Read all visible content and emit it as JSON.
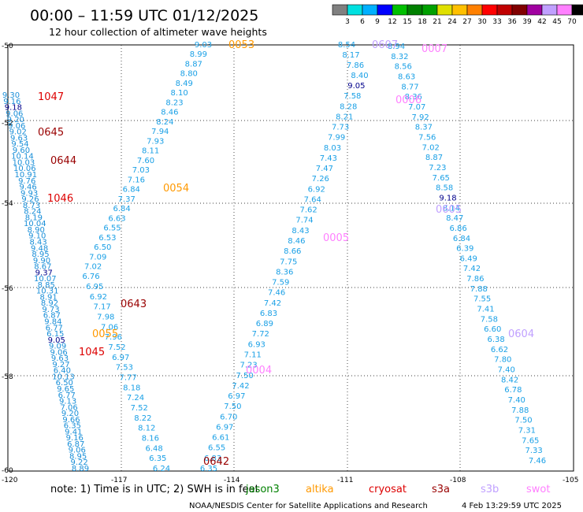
{
  "header": {
    "title": "00:00 – 11:59 UTC 01/12/2025",
    "subtitle": "12 hour collection of altimeter wave heights"
  },
  "legend": {
    "ticks": [
      "3",
      "6",
      "9",
      "12",
      "15",
      "18",
      "21",
      "24",
      "27",
      "30",
      "33",
      "36",
      "39",
      "42",
      "45",
      "70"
    ],
    "unit": "(ft)",
    "colors": [
      "#808080",
      "#00e0e0",
      "#00b0ff",
      "#0000ff",
      "#00c000",
      "#008000",
      "#00a000",
      "#e0e000",
      "#ffc000",
      "#ff8000",
      "#ff0000",
      "#c00000",
      "#800000",
      "#a000a0",
      "#c0a0ff",
      "#ff80ff",
      "#000000"
    ]
  },
  "axes": {
    "x_labels": [
      "-120",
      "-117",
      "-114",
      "-111",
      "-108",
      "-105"
    ],
    "y_labels": [
      "-50",
      "-52",
      "-54",
      "-56",
      "-58",
      "-60"
    ],
    "grid": "dotted"
  },
  "footer": {
    "note": "note:  1) Time is in UTC; 2) SWH is in feet",
    "satellites": [
      {
        "name": "jason3",
        "color": "#008000"
      },
      {
        "name": "altika",
        "color": "#ff9900"
      },
      {
        "name": "cryosat",
        "color": "#dd0000"
      },
      {
        "name": "s3a",
        "color": "#990000"
      },
      {
        "name": "s3b",
        "color": "#c0a0ff"
      },
      {
        "name": "swot",
        "color": "#ff80ff"
      }
    ],
    "credit": "NOAA/NESDIS Center for Satellite Applications and Research",
    "timestamp": "4 Feb 13:29:59 UTC 2025"
  },
  "time_labels": [
    {
      "text": "1047",
      "color": "#dd0000"
    },
    {
      "text": "0645",
      "color": "#990000"
    },
    {
      "text": "0644",
      "color": "#990000"
    },
    {
      "text": "1046",
      "color": "#dd0000"
    },
    {
      "text": "0643",
      "color": "#990000"
    },
    {
      "text": "1045",
      "color": "#dd0000"
    },
    {
      "text": "0642",
      "color": "#990000"
    },
    {
      "text": "0053",
      "color": "#ff9900"
    },
    {
      "text": "0054",
      "color": "#ff9900"
    },
    {
      "text": "0055",
      "color": "#ff9900"
    },
    {
      "text": "0607",
      "color": "#c0a0ff"
    },
    {
      "text": "0007",
      "color": "#ff80ff"
    },
    {
      "text": "0006",
      "color": "#ff80ff"
    },
    {
      "text": "0605",
      "color": "#c0a0ff"
    },
    {
      "text": "0005",
      "color": "#ff80ff"
    },
    {
      "text": "0604",
      "color": "#c0a0ff"
    },
    {
      "text": "0004",
      "color": "#ff80ff"
    }
  ],
  "track_values": {
    "track_a": [
      "9.03",
      "8.99",
      "8.87",
      "8.80",
      "8.49",
      "8.10",
      "8.23",
      "8.46",
      "8.24",
      "7.94",
      "7.93",
      "8.11",
      "7.60",
      "7.03",
      "7.16",
      "6.84",
      "7.37",
      "6.84",
      "6.63",
      "6.55",
      "6.53",
      "6.50",
      "7.09",
      "7.02",
      "6.76",
      "6.95",
      "6.92",
      "7.17",
      "7.98",
      "7.06",
      "7.96",
      "7.52",
      "6.97",
      "7.53",
      "7.77",
      "8.18",
      "7.24",
      "7.52",
      "8.22",
      "8.12",
      "8.16",
      "6.48",
      "6.35",
      "6.24"
    ],
    "track_b": [
      "8.54",
      "8.17",
      "7.86",
      "8.40",
      "9.05",
      "7.58",
      "8.28",
      "8.21",
      "7.73",
      "7.99",
      "8.03",
      "7.43",
      "7.47",
      "7.26",
      "6.92",
      "7.64",
      "7.62",
      "7.74",
      "8.43",
      "8.46",
      "8.66",
      "7.75",
      "8.36",
      "7.59",
      "7.46",
      "7.42",
      "6.83",
      "6.89",
      "7.72",
      "6.93",
      "7.11",
      "7.23",
      "7.50",
      "7.42",
      "6.97",
      "7.50",
      "6.70",
      "6.97",
      "6.61",
      "6.55",
      "6.83",
      "6.35"
    ],
    "track_c": [
      "8.94",
      "8.32",
      "8.56",
      "8.63",
      "8.77",
      "8.36",
      "7.07",
      "7.92",
      "8.37",
      "7.56",
      "7.02",
      "8.87",
      "7.23",
      "7.65",
      "8.58",
      "9.18",
      "8.14",
      "8.47",
      "6.86",
      "6.84",
      "6.39",
      "6.49",
      "7.42",
      "7.86",
      "7.88",
      "7.55",
      "7.41",
      "7.58",
      "6.60",
      "6.38",
      "6.62",
      "7.80",
      "7.40",
      "8.42",
      "6.78",
      "7.40",
      "7.88",
      "7.50",
      "7.31",
      "7.65",
      "7.33",
      "7.46"
    ],
    "track_d": [
      "9.30",
      "9.16",
      "9.18",
      "9.06",
      "9.20",
      "9.06",
      "9.02",
      "9.63",
      "9.54",
      "9.60",
      "10.14",
      "10.03",
      "10.06",
      "10.91",
      "9.76",
      "9.46",
      "9.93",
      "9.26",
      "8.73",
      "8.24",
      "8.19",
      "10.04",
      "8.90",
      "9.10",
      "8.43",
      "9.48",
      "8.95",
      "9.90",
      "8.67",
      "9.37",
      "10.07",
      "8.85",
      "10.31",
      "8.91",
      "8.92",
      "9.73",
      "6.87",
      "9.84",
      "6.77",
      "6.15",
      "9.05",
      "9.09",
      "9.06",
      "9.63",
      "9.27",
      "6.40",
      "10.13",
      "6.50",
      "9.65",
      "6.77",
      "9.13",
      "7.06",
      "9.20",
      "9.66",
      "6.35",
      "9.41",
      "9.16",
      "6.87",
      "9.06",
      "8.95",
      "9.22",
      "8.89"
    ]
  }
}
